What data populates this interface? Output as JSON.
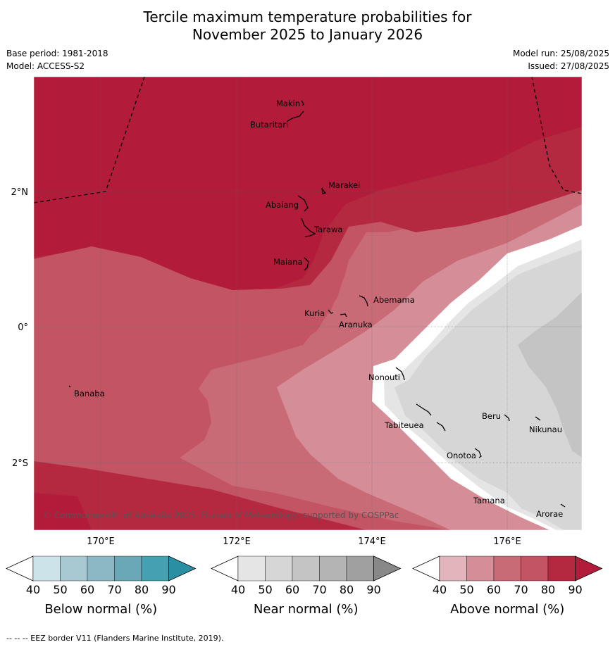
{
  "title_line1": "Tercile maximum temperature probabilities for",
  "title_line2": "November 2025 to January 2026",
  "base_period": "Base period: 1981-2018",
  "model": "Model: ACCESS-S2",
  "model_run": "Model run: 25/08/2025",
  "issued": "Issued: 27/08/2025",
  "copyright": "© Commonwealth of Australia 2025, Bureau of Meteorology, supported by COSPPac",
  "footnote": "-- -- -- EEZ border V11 (Flanders Marine Institute, 2019).",
  "lon_labels": [
    "170°E",
    "172°E",
    "174°E",
    "176°E"
  ],
  "lat_labels": [
    "2°N",
    "0°",
    "2°S"
  ],
  "places": [
    "Makin",
    "Butaritari",
    "Marakei",
    "Abaiang",
    "Tarawa",
    "Maiana",
    "Abemama",
    "Kuria",
    "Aranuka",
    "Banaba",
    "Nonouti",
    "Tabiteuea",
    "Beru",
    "Nikunau",
    "Onotoa",
    "Tamana",
    "Arorae"
  ],
  "colorbars": [
    {
      "title": "Below normal (%)",
      "ticks": [
        "40",
        "50",
        "60",
        "70",
        "80",
        "90"
      ],
      "colors": [
        "#ffffff",
        "#cde3ea",
        "#a9c9d2",
        "#8cb8c5",
        "#6aa8b8",
        "#45a0b2",
        "#2a8fa3"
      ]
    },
    {
      "title": "Near normal (%)",
      "ticks": [
        "40",
        "50",
        "60",
        "70",
        "80",
        "90"
      ],
      "colors": [
        "#ffffff",
        "#e5e5e5",
        "#d6d6d6",
        "#c4c4c4",
        "#b4b4b4",
        "#a0a0a0",
        "#888888"
      ]
    },
    {
      "title": "Above normal (%)",
      "ticks": [
        "40",
        "50",
        "60",
        "70",
        "80",
        "90"
      ],
      "colors": [
        "#ffffff",
        "#e2b5bd",
        "#d58e98",
        "#c96b77",
        "#c25463",
        "#b42940",
        "#b31b3a"
      ]
    }
  ]
}
